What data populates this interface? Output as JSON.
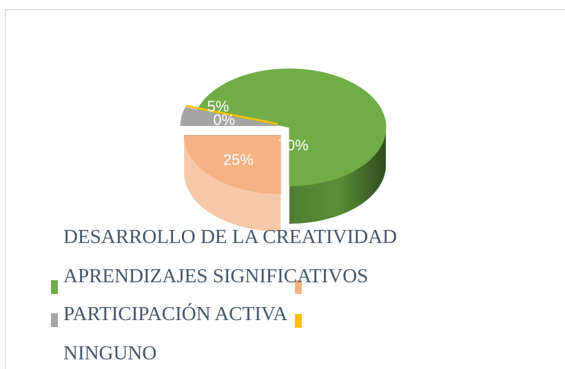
{
  "chart_data": {
    "type": "pie3d",
    "categories": [
      "DESARROLLO DE LA CREATIVIDAD",
      "APRENDIZAJES SIGNIFICATIVOS",
      "PARTICIPACIÓN ACTIVA",
      "NINGUNO"
    ],
    "values": [
      70,
      25,
      5,
      0
    ],
    "value_labels": [
      "70%",
      "25%",
      "5%",
      "0%"
    ],
    "colors": [
      "#70ad47",
      "#f4b183",
      "#a5a5a5",
      "#ffc000"
    ]
  }
}
